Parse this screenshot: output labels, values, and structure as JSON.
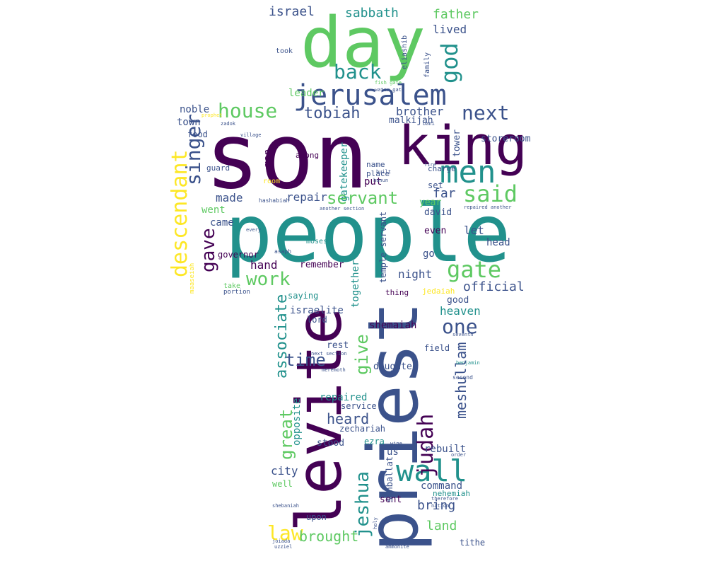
{
  "palette": {
    "background": "#ffffff",
    "colors": [
      "#440154",
      "#3b528b",
      "#21918c",
      "#5ec962",
      "#fde725"
    ]
  },
  "words": [
    "son",
    "people",
    "levite",
    "priest",
    "day",
    "king",
    "jerusalem",
    "men",
    "said",
    "gate",
    "wall",
    "judah",
    "descendant",
    "house",
    "servant",
    "repair",
    "next",
    "back",
    "god",
    "singer",
    "made",
    "work",
    "gave",
    "official",
    "jeshua",
    "law",
    "brought",
    "time",
    "one",
    "great",
    "give",
    "associate",
    "meshullam",
    "heard",
    "sabbath",
    "israel",
    "father",
    "lived",
    "tobiah",
    "brother",
    "noble",
    "town",
    "leader",
    "malkijah",
    "storeroom",
    "tower",
    "went",
    "came",
    "man",
    "put",
    "far",
    "set",
    "year",
    "david",
    "let",
    "even",
    "head",
    "night",
    "go",
    "hand",
    "remember",
    "together",
    "heaven",
    "shemaiah",
    "israelite",
    "lord",
    "rest",
    "daughter",
    "field",
    "repaired",
    "service",
    "opposite",
    "zechariah",
    "ezra",
    "stood",
    "us",
    "rebuilt",
    "city",
    "command",
    "nehemiah",
    "bring",
    "sent",
    "upon",
    "land",
    "tithe",
    "well",
    "sanballat",
    "gatekeeper",
    "governor",
    "temple servant",
    "good",
    "jedaiah",
    "saying",
    "thing",
    "among",
    "name",
    "place",
    "charge",
    "food",
    "guard",
    "room",
    "moses",
    "took",
    "eliashib",
    "family",
    "water gate",
    "fish gate",
    "benjamin",
    "hashabiah",
    "another section",
    "repaired another",
    "next section",
    "asaph",
    "maaseiah",
    "portion",
    "take",
    "every",
    "hanun",
    "fire",
    "built",
    "village",
    "zadok",
    "prophet",
    "ammonite",
    "holy",
    "therefore",
    "order",
    "bani",
    "nation",
    "second",
    "seventh",
    "wine",
    "shebaniah",
    "meremoth",
    "joiada",
    "uzziel"
  ]
}
